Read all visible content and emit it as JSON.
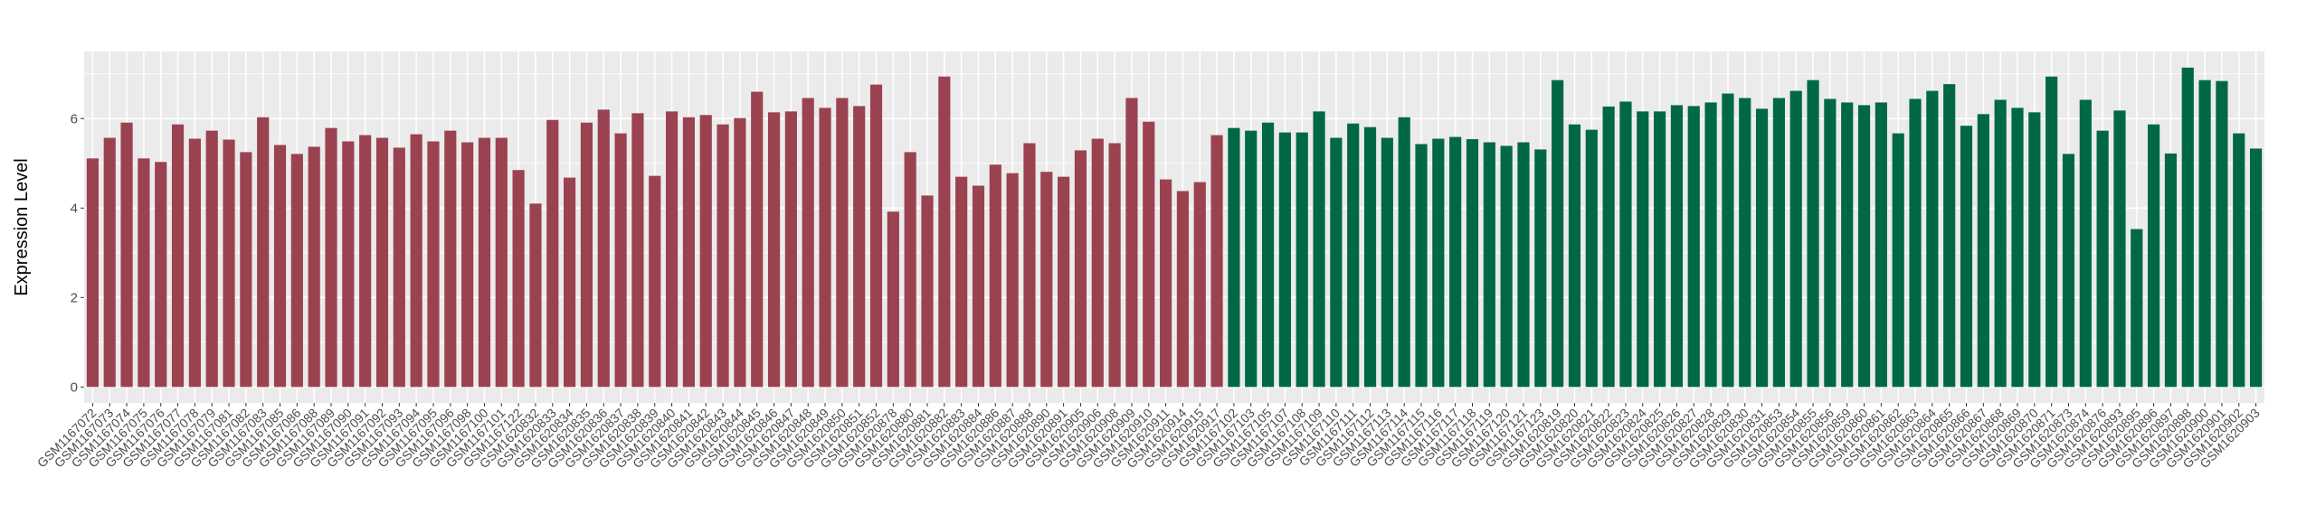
{
  "chart_data": {
    "type": "bar",
    "title": "",
    "xlabel": "",
    "ylabel": "Expression Level",
    "ylim": [
      -0.357,
      7.5
    ],
    "yticks": [
      0,
      2,
      4,
      6
    ],
    "grid": true,
    "legend": "none",
    "background": "#EBEBEB",
    "group_colors": [
      "#9B4251",
      "#006846"
    ],
    "categories": [
      "GSM1167072",
      "GSM1167073",
      "GSM1167074",
      "GSM1167075",
      "GSM1167076",
      "GSM1167077",
      "GSM1167078",
      "GSM1167079",
      "GSM1167081",
      "GSM1167082",
      "GSM1167083",
      "GSM1167085",
      "GSM1167086",
      "GSM1167088",
      "GSM1167089",
      "GSM1167090",
      "GSM1167091",
      "GSM1167092",
      "GSM1167093",
      "GSM1167094",
      "GSM1167095",
      "GSM1167096",
      "GSM1167098",
      "GSM1167100",
      "GSM1167101",
      "GSM1167122",
      "GSM1620832",
      "GSM1620833",
      "GSM1620834",
      "GSM1620835",
      "GSM1620836",
      "GSM1620837",
      "GSM1620838",
      "GSM1620839",
      "GSM1620840",
      "GSM1620841",
      "GSM1620842",
      "GSM1620843",
      "GSM1620844",
      "GSM1620845",
      "GSM1620846",
      "GSM1620847",
      "GSM1620848",
      "GSM1620849",
      "GSM1620850",
      "GSM1620851",
      "GSM1620852",
      "GSM1620878",
      "GSM1620880",
      "GSM1620881",
      "GSM1620882",
      "GSM1620883",
      "GSM1620884",
      "GSM1620886",
      "GSM1620887",
      "GSM1620888",
      "GSM1620890",
      "GSM1620891",
      "GSM1620905",
      "GSM1620906",
      "GSM1620908",
      "GSM1620909",
      "GSM1620910",
      "GSM1620911",
      "GSM1620914",
      "GSM1620915",
      "GSM1620917",
      "GSM1167102",
      "GSM1167103",
      "GSM1167105",
      "GSM1167107",
      "GSM1167108",
      "GSM1167109",
      "GSM1167110",
      "GSM1167111",
      "GSM1167112",
      "GSM1167113",
      "GSM1167114",
      "GSM1167115",
      "GSM1167116",
      "GSM1167117",
      "GSM1167118",
      "GSM1167119",
      "GSM1167120",
      "GSM1167121",
      "GSM1167123",
      "GSM1620819",
      "GSM1620820",
      "GSM1620821",
      "GSM1620822",
      "GSM1620823",
      "GSM1620824",
      "GSM1620825",
      "GSM1620826",
      "GSM1620827",
      "GSM1620828",
      "GSM1620829",
      "GSM1620830",
      "GSM1620831",
      "GSM1620853",
      "GSM1620854",
      "GSM1620855",
      "GSM1620856",
      "GSM1620859",
      "GSM1620860",
      "GSM1620861",
      "GSM1620862",
      "GSM1620863",
      "GSM1620864",
      "GSM1620865",
      "GSM1620866",
      "GSM1620867",
      "GSM1620868",
      "GSM1620869",
      "GSM1620870",
      "GSM1620871",
      "GSM1620873",
      "GSM1620874",
      "GSM1620876",
      "GSM1620893",
      "GSM1620895",
      "GSM1620896",
      "GSM1620897",
      "GSM1620898",
      "GSM1620900",
      "GSM1620901",
      "GSM1620902",
      "GSM1620903"
    ],
    "values": [
      5.11,
      5.57,
      5.91,
      5.11,
      5.03,
      5.87,
      5.55,
      5.73,
      5.53,
      5.25,
      6.03,
      5.41,
      5.21,
      5.37,
      5.79,
      5.49,
      5.63,
      5.57,
      5.35,
      5.65,
      5.49,
      5.73,
      5.47,
      5.57,
      5.57,
      4.85,
      4.1,
      5.97,
      4.68,
      5.91,
      6.2,
      5.67,
      6.12,
      4.72,
      6.16,
      6.03,
      6.08,
      5.87,
      6.01,
      6.6,
      6.14,
      6.16,
      6.46,
      6.24,
      6.46,
      6.28,
      6.76,
      3.92,
      5.25,
      4.28,
      6.94,
      4.7,
      4.5,
      4.97,
      4.78,
      5.45,
      4.81,
      4.7,
      5.29,
      5.55,
      5.45,
      6.46,
      5.93,
      4.64,
      4.38,
      4.58,
      5.63,
      5.79,
      5.73,
      5.91,
      5.69,
      5.69,
      6.16,
      5.57,
      5.89,
      5.81,
      5.57,
      6.03,
      5.43,
      5.55,
      5.59,
      5.54,
      5.47,
      5.39,
      5.47,
      5.31,
      6.86,
      5.87,
      5.75,
      6.27,
      6.38,
      6.16,
      6.16,
      6.3,
      6.28,
      6.36,
      6.56,
      6.46,
      6.22,
      6.46,
      6.62,
      6.86,
      6.44,
      6.36,
      6.3,
      6.36,
      5.67,
      6.44,
      6.62,
      6.77,
      5.84,
      6.1,
      6.42,
      6.24,
      6.14,
      6.94,
      5.21,
      6.42,
      5.73,
      6.18,
      3.53,
      5.87,
      5.22,
      7.14,
      6.86,
      6.84,
      5.67,
      5.33
    ],
    "groups": [
      0,
      0,
      0,
      0,
      0,
      0,
      0,
      0,
      0,
      0,
      0,
      0,
      0,
      0,
      0,
      0,
      0,
      0,
      0,
      0,
      0,
      0,
      0,
      0,
      0,
      0,
      0,
      0,
      0,
      0,
      0,
      0,
      0,
      0,
      0,
      0,
      0,
      0,
      0,
      0,
      0,
      0,
      0,
      0,
      0,
      0,
      0,
      0,
      0,
      0,
      0,
      0,
      0,
      0,
      0,
      0,
      0,
      0,
      0,
      0,
      0,
      0,
      0,
      0,
      0,
      0,
      0,
      1,
      1,
      1,
      1,
      1,
      1,
      1,
      1,
      1,
      1,
      1,
      1,
      1,
      1,
      1,
      1,
      1,
      1,
      1,
      1,
      1,
      1,
      1,
      1,
      1,
      1,
      1,
      1,
      1,
      1,
      1,
      1,
      1,
      1,
      1,
      1,
      1,
      1,
      1,
      1,
      1,
      1,
      1,
      1,
      1,
      1,
      1,
      1,
      1,
      1,
      1,
      1,
      1,
      1,
      1,
      1,
      1,
      1,
      1,
      1,
      1
    ]
  }
}
